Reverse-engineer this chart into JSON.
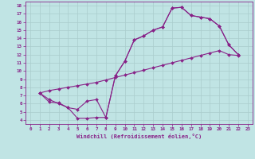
{
  "xlabel": "Windchill (Refroidissement éolien,°C)",
  "xlim": [
    -0.5,
    23.5
  ],
  "ylim": [
    3.5,
    18.5
  ],
  "xticks": [
    0,
    1,
    2,
    3,
    4,
    5,
    6,
    7,
    8,
    9,
    10,
    11,
    12,
    13,
    14,
    15,
    16,
    17,
    18,
    19,
    20,
    21,
    22,
    23
  ],
  "yticks": [
    4,
    5,
    6,
    7,
    8,
    9,
    10,
    11,
    12,
    13,
    14,
    15,
    16,
    17,
    18
  ],
  "bg_color": "#c0e4e4",
  "line_color": "#882288",
  "grid_color": "#aacccc",
  "line1_x": [
    1,
    2,
    3,
    4,
    5,
    6,
    7,
    8,
    9,
    10,
    11,
    12,
    13,
    14,
    15,
    16,
    17,
    18,
    19,
    20,
    21,
    22
  ],
  "line1_y": [
    7.3,
    6.2,
    6.1,
    5.5,
    4.2,
    4.2,
    4.3,
    4.3,
    9.4,
    11.2,
    13.8,
    14.3,
    15.0,
    15.4,
    17.7,
    17.8,
    16.8,
    16.6,
    16.4,
    15.5,
    13.2,
    12.0
  ],
  "line2_x": [
    1,
    2,
    3,
    4,
    5,
    6,
    7,
    8,
    9,
    10,
    11,
    12,
    13,
    14,
    15,
    16,
    17,
    18,
    19,
    20,
    21,
    22
  ],
  "line2_y": [
    7.3,
    7.6,
    7.8,
    8.0,
    8.2,
    8.4,
    8.6,
    8.9,
    9.2,
    9.5,
    9.8,
    10.1,
    10.4,
    10.7,
    11.0,
    11.3,
    11.6,
    11.9,
    12.2,
    12.5,
    12.0,
    11.9
  ],
  "line3_x": [
    1,
    2,
    3,
    4,
    5,
    6,
    7,
    8,
    9,
    10,
    11,
    12,
    13,
    14,
    15,
    16,
    17,
    18,
    19,
    20,
    21,
    22
  ],
  "line3_y": [
    7.3,
    6.5,
    6.0,
    5.5,
    5.3,
    6.3,
    6.5,
    4.3,
    9.4,
    11.2,
    13.8,
    14.3,
    15.0,
    15.4,
    17.7,
    17.8,
    16.8,
    16.6,
    16.4,
    15.5,
    13.2,
    12.0
  ]
}
